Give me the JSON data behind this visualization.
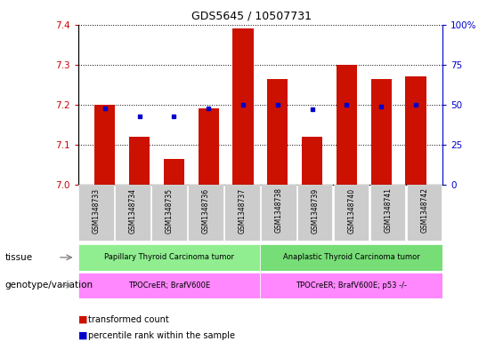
{
  "title": "GDS5645 / 10507731",
  "samples": [
    "GSM1348733",
    "GSM1348734",
    "GSM1348735",
    "GSM1348736",
    "GSM1348737",
    "GSM1348738",
    "GSM1348739",
    "GSM1348740",
    "GSM1348741",
    "GSM1348742"
  ],
  "transformed_counts": [
    7.2,
    7.12,
    7.065,
    7.19,
    7.39,
    7.265,
    7.12,
    7.3,
    7.265,
    7.27
  ],
  "percentile_ranks": [
    48,
    43,
    43,
    48,
    50,
    50,
    47,
    50,
    49,
    50
  ],
  "ylim_left": [
    7.0,
    7.4
  ],
  "ylim_right": [
    0,
    100
  ],
  "yticks_left": [
    7.0,
    7.1,
    7.2,
    7.3,
    7.4
  ],
  "yticks_right": [
    0,
    25,
    50,
    75,
    100
  ],
  "bar_color": "#cc1100",
  "dot_color": "#0000cc",
  "grid_color": "#000000",
  "bg_color": "#ffffff",
  "tissue_labels": [
    "Papillary Thyroid Carcinoma tumor",
    "Anaplastic Thyroid Carcinoma tumor"
  ],
  "tissue_colors": [
    "#90ee90",
    "#77dd77"
  ],
  "genotype_labels": [
    "TPOCreER; BrafV600E",
    "TPOCreER; BrafV600E; p53 -/-"
  ],
  "genotype_color": "#ff88ff",
  "tissue_split": 5,
  "tick_label_color_left": "#cc0000",
  "tick_label_color_right": "#0000cc",
  "sample_bg_color": "#cccccc",
  "legend_bar_label": "transformed count",
  "legend_dot_label": "percentile rank within the sample",
  "tissue_row_label": "tissue",
  "genotype_row_label": "genotype/variation"
}
